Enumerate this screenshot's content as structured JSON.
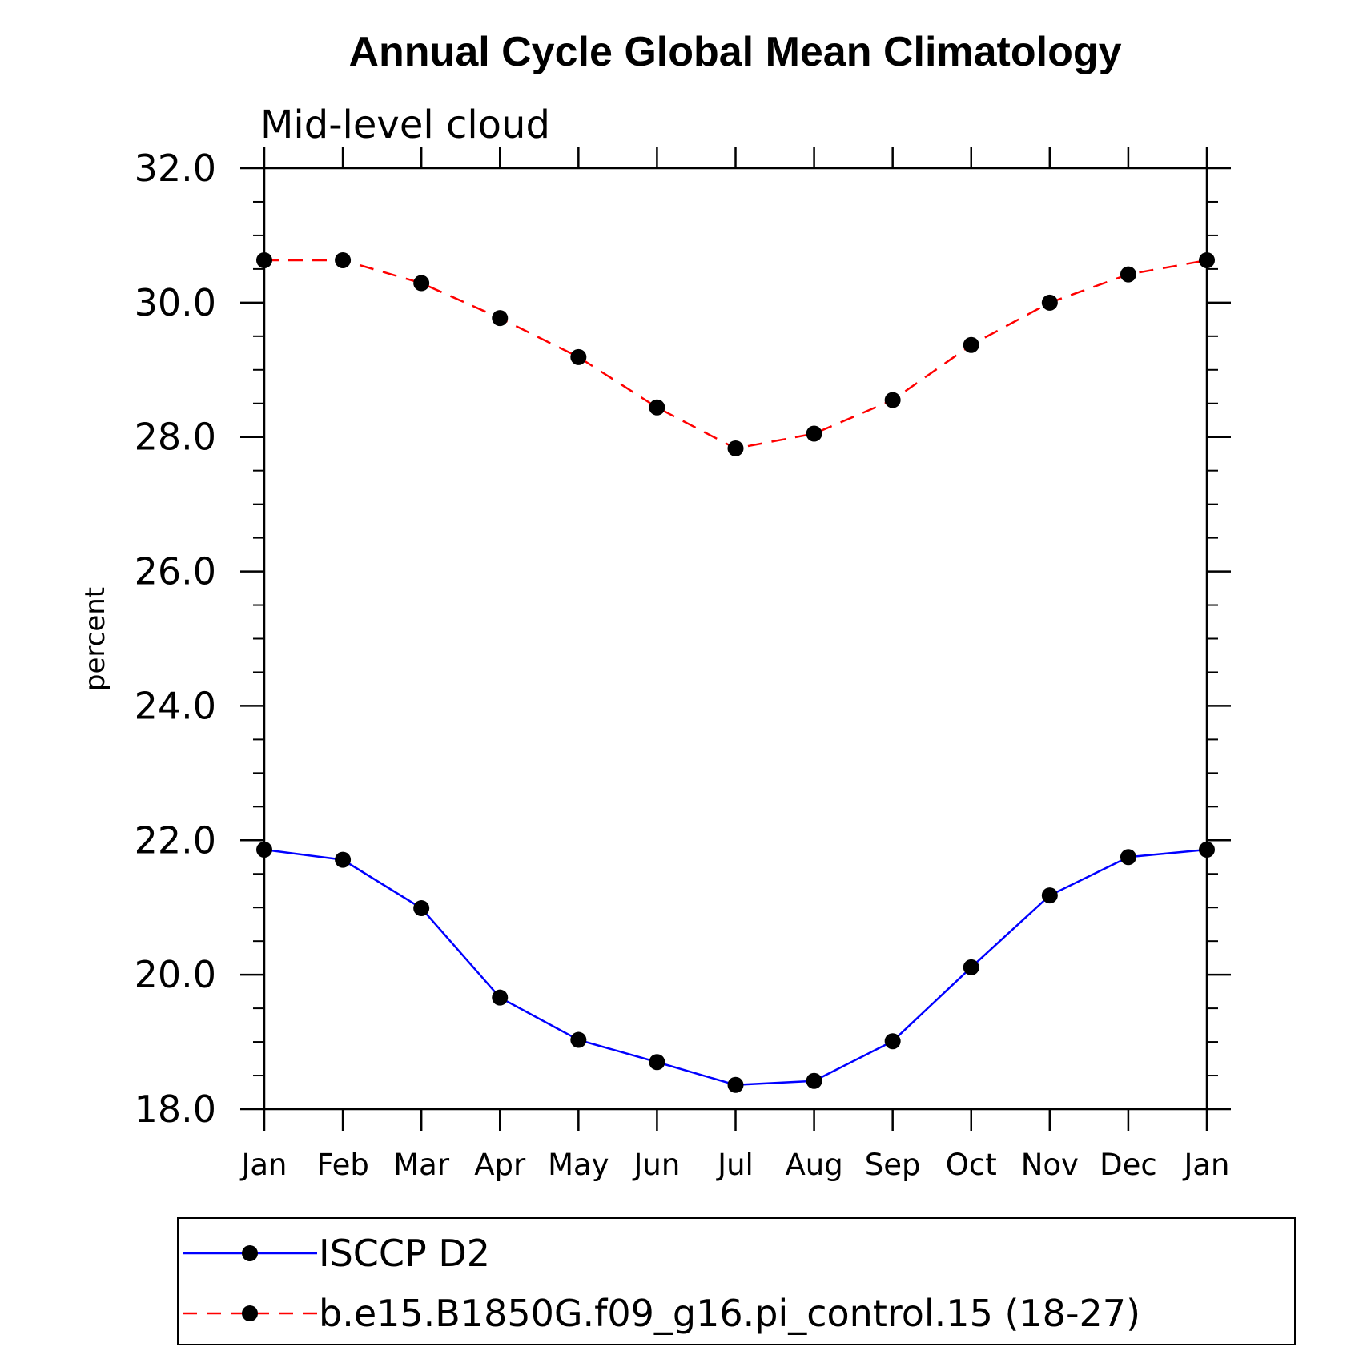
{
  "chart_data": {
    "type": "line",
    "title": "Annual Cycle Global Mean Climatology",
    "subtitle": "Mid-level cloud",
    "ylabel": "percent",
    "xlabel": "",
    "categories": [
      "Jan",
      "Feb",
      "Mar",
      "Apr",
      "May",
      "Jun",
      "Jul",
      "Aug",
      "Sep",
      "Oct",
      "Nov",
      "Dec",
      "Jan"
    ],
    "ylim": [
      18.0,
      32.0
    ],
    "yticks": [
      "18.0",
      "20.0",
      "22.0",
      "24.0",
      "26.0",
      "28.0",
      "30.0",
      "32.0"
    ],
    "grid": false,
    "legend_position": "bottom",
    "series": [
      {
        "name": "ISCCP D2",
        "color": "#0000ff",
        "line_style": "solid",
        "marker": "filled-circle",
        "values": [
          21.86,
          21.71,
          20.99,
          19.66,
          19.03,
          18.7,
          18.36,
          18.42,
          19.01,
          20.11,
          21.18,
          21.75,
          21.86
        ]
      },
      {
        "name": "b.e15.B1850G.f09_g16.pi_control.15 (18-27)",
        "color": "#ff0000",
        "line_style": "dashed",
        "marker": "filled-circle",
        "values": [
          30.63,
          30.63,
          30.29,
          29.77,
          29.19,
          28.44,
          27.83,
          28.05,
          28.55,
          29.37,
          30.0,
          30.42,
          30.63
        ]
      }
    ]
  }
}
